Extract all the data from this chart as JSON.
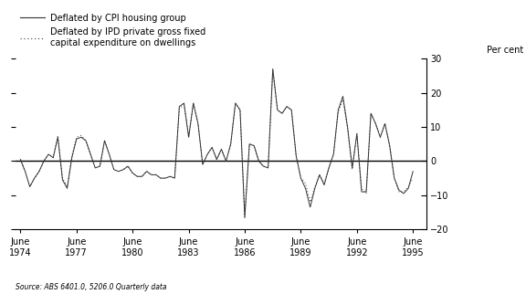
{
  "ylabel_right": "Per cent",
  "source_text": "Source: ABS 6401.0, 5206.0 Quarterly data",
  "legend": [
    {
      "label": "Deflated by CPI housing group",
      "linestyle": "solid"
    },
    {
      "label": "Deflated by IPD private gross fixed\ncapital expenditure on dwellings",
      "linestyle": "dotted"
    }
  ],
  "ylim": [
    -20,
    30
  ],
  "yticks": [
    -20,
    -10,
    0,
    10,
    20,
    30
  ],
  "xtick_labels": [
    "June\n1974",
    "June\n1977",
    "June\n1980",
    "June\n1983",
    "June\n1986",
    "June\n1989",
    "June\n1992",
    "June\n1995"
  ],
  "xtick_positions": [
    1974.5,
    1977.5,
    1980.5,
    1983.5,
    1986.5,
    1989.5,
    1992.5,
    1995.5
  ],
  "line_color": "#333333",
  "background_color": "#ffffff",
  "cpi_data": [
    [
      1974.5,
      0.5
    ],
    [
      1974.75,
      -3.0
    ],
    [
      1975.0,
      -7.5
    ],
    [
      1975.25,
      -5.0
    ],
    [
      1975.5,
      -3.0
    ],
    [
      1975.75,
      0.0
    ],
    [
      1976.0,
      2.0
    ],
    [
      1976.25,
      1.0
    ],
    [
      1976.5,
      7.0
    ],
    [
      1976.75,
      -5.5
    ],
    [
      1977.0,
      -8.0
    ],
    [
      1977.25,
      1.0
    ],
    [
      1977.5,
      6.5
    ],
    [
      1977.75,
      7.0
    ],
    [
      1978.0,
      6.0
    ],
    [
      1978.25,
      2.0
    ],
    [
      1978.5,
      -2.0
    ],
    [
      1978.75,
      -1.5
    ],
    [
      1979.0,
      6.0
    ],
    [
      1979.25,
      2.0
    ],
    [
      1979.5,
      -2.5
    ],
    [
      1979.75,
      -3.0
    ],
    [
      1980.0,
      -2.5
    ],
    [
      1980.25,
      -1.5
    ],
    [
      1980.5,
      -3.5
    ],
    [
      1980.75,
      -4.5
    ],
    [
      1981.0,
      -4.5
    ],
    [
      1981.25,
      -3.0
    ],
    [
      1981.5,
      -4.0
    ],
    [
      1981.75,
      -4.0
    ],
    [
      1982.0,
      -5.0
    ],
    [
      1982.25,
      -5.0
    ],
    [
      1982.5,
      -4.5
    ],
    [
      1982.75,
      -5.0
    ],
    [
      1983.0,
      16.0
    ],
    [
      1983.25,
      17.0
    ],
    [
      1983.5,
      7.0
    ],
    [
      1983.75,
      17.0
    ],
    [
      1984.0,
      11.0
    ],
    [
      1984.25,
      -1.0
    ],
    [
      1984.5,
      2.0
    ],
    [
      1984.75,
      4.0
    ],
    [
      1985.0,
      0.5
    ],
    [
      1985.25,
      3.5
    ],
    [
      1985.5,
      0.0
    ],
    [
      1985.75,
      5.0
    ],
    [
      1986.0,
      17.0
    ],
    [
      1986.25,
      15.0
    ],
    [
      1986.5,
      -16.5
    ],
    [
      1986.75,
      5.0
    ],
    [
      1987.0,
      4.5
    ],
    [
      1987.25,
      0.0
    ],
    [
      1987.5,
      -1.5
    ],
    [
      1987.75,
      -2.0
    ],
    [
      1988.0,
      27.0
    ],
    [
      1988.25,
      15.0
    ],
    [
      1988.5,
      14.0
    ],
    [
      1988.75,
      16.0
    ],
    [
      1989.0,
      15.0
    ],
    [
      1989.25,
      1.5
    ],
    [
      1989.5,
      -5.0
    ],
    [
      1989.75,
      -8.0
    ],
    [
      1990.0,
      -13.5
    ],
    [
      1990.25,
      -8.0
    ],
    [
      1990.5,
      -4.0
    ],
    [
      1990.75,
      -7.0
    ],
    [
      1991.0,
      -2.0
    ],
    [
      1991.25,
      2.0
    ],
    [
      1991.5,
      15.0
    ],
    [
      1991.75,
      19.0
    ],
    [
      1992.0,
      10.0
    ],
    [
      1992.25,
      -2.0
    ],
    [
      1992.5,
      8.0
    ],
    [
      1992.75,
      -9.0
    ],
    [
      1993.0,
      -9.0
    ],
    [
      1993.25,
      14.0
    ],
    [
      1993.5,
      11.0
    ],
    [
      1993.75,
      7.0
    ],
    [
      1994.0,
      11.0
    ],
    [
      1994.25,
      4.5
    ],
    [
      1994.5,
      -5.0
    ],
    [
      1994.75,
      -8.5
    ],
    [
      1995.0,
      -9.5
    ],
    [
      1995.25,
      -8.0
    ],
    [
      1995.5,
      -3.0
    ]
  ],
  "ipd_data": [
    [
      1974.5,
      0.5
    ],
    [
      1974.75,
      -3.0
    ],
    [
      1975.0,
      -7.5
    ],
    [
      1975.25,
      -5.0
    ],
    [
      1975.5,
      -3.0
    ],
    [
      1975.75,
      0.0
    ],
    [
      1976.0,
      2.0
    ],
    [
      1976.25,
      1.0
    ],
    [
      1976.5,
      7.5
    ],
    [
      1976.75,
      -5.0
    ],
    [
      1977.0,
      -7.5
    ],
    [
      1977.25,
      1.5
    ],
    [
      1977.5,
      7.0
    ],
    [
      1977.75,
      7.5
    ],
    [
      1978.0,
      6.0
    ],
    [
      1978.25,
      2.0
    ],
    [
      1978.5,
      -2.0
    ],
    [
      1978.75,
      -1.5
    ],
    [
      1979.0,
      6.0
    ],
    [
      1979.25,
      2.0
    ],
    [
      1979.5,
      -2.5
    ],
    [
      1979.75,
      -3.0
    ],
    [
      1980.0,
      -2.5
    ],
    [
      1980.25,
      -1.5
    ],
    [
      1980.5,
      -3.5
    ],
    [
      1980.75,
      -4.5
    ],
    [
      1981.0,
      -4.5
    ],
    [
      1981.25,
      -3.0
    ],
    [
      1981.5,
      -4.0
    ],
    [
      1981.75,
      -4.0
    ],
    [
      1982.0,
      -5.0
    ],
    [
      1982.25,
      -5.0
    ],
    [
      1982.5,
      -4.5
    ],
    [
      1982.75,
      -5.0
    ],
    [
      1983.0,
      15.5
    ],
    [
      1983.25,
      16.5
    ],
    [
      1983.5,
      7.0
    ],
    [
      1983.75,
      17.0
    ],
    [
      1984.0,
      11.0
    ],
    [
      1984.25,
      -1.0
    ],
    [
      1984.5,
      2.0
    ],
    [
      1984.75,
      4.0
    ],
    [
      1985.0,
      0.5
    ],
    [
      1985.25,
      3.5
    ],
    [
      1985.5,
      0.0
    ],
    [
      1985.75,
      5.0
    ],
    [
      1986.0,
      17.0
    ],
    [
      1986.25,
      15.0
    ],
    [
      1986.5,
      -16.5
    ],
    [
      1986.75,
      5.0
    ],
    [
      1987.0,
      4.5
    ],
    [
      1987.25,
      0.0
    ],
    [
      1987.5,
      -1.5
    ],
    [
      1987.75,
      -2.0
    ],
    [
      1988.0,
      27.0
    ],
    [
      1988.25,
      15.0
    ],
    [
      1988.5,
      14.0
    ],
    [
      1988.75,
      16.0
    ],
    [
      1989.0,
      15.0
    ],
    [
      1989.25,
      1.5
    ],
    [
      1989.5,
      -5.0
    ],
    [
      1989.75,
      -6.5
    ],
    [
      1990.0,
      -12.0
    ],
    [
      1990.25,
      -7.5
    ],
    [
      1990.5,
      -4.0
    ],
    [
      1990.75,
      -6.5
    ],
    [
      1991.0,
      -2.0
    ],
    [
      1991.25,
      2.0
    ],
    [
      1991.5,
      14.5
    ],
    [
      1991.75,
      18.0
    ],
    [
      1992.0,
      9.5
    ],
    [
      1992.25,
      -2.5
    ],
    [
      1992.5,
      8.0
    ],
    [
      1992.75,
      -8.0
    ],
    [
      1993.0,
      -9.5
    ],
    [
      1993.25,
      14.0
    ],
    [
      1993.5,
      11.0
    ],
    [
      1993.75,
      7.0
    ],
    [
      1994.0,
      11.0
    ],
    [
      1994.25,
      5.0
    ],
    [
      1994.5,
      -5.0
    ],
    [
      1994.75,
      -9.0
    ],
    [
      1995.0,
      -9.0
    ],
    [
      1995.25,
      -7.5
    ],
    [
      1995.5,
      -5.0
    ]
  ]
}
